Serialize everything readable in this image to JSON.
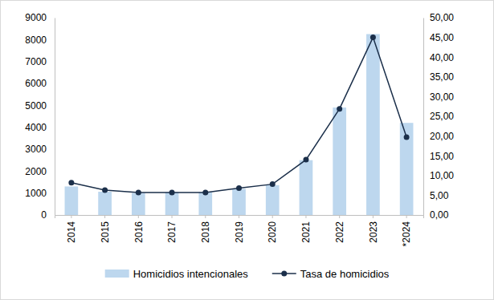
{
  "chart_data": {
    "type": "bar",
    "categories": [
      "2014",
      "2015",
      "2016",
      "2017",
      "2018",
      "2019",
      "2020",
      "2021",
      "2022",
      "2023",
      "*2024"
    ],
    "series": [
      {
        "name": "Homicidios intencionales",
        "type": "bar",
        "color": "#bdd7ee",
        "values": [
          1300,
          1060,
          1000,
          1040,
          1050,
          1190,
          1360,
          2500,
          4900,
          8250,
          4200
        ]
      },
      {
        "name": "Tasa de homicidios",
        "type": "line",
        "color": "#1b2f4a",
        "marker": "circle",
        "axis": "y2",
        "values": [
          8.2,
          6.3,
          5.7,
          5.7,
          5.7,
          6.8,
          7.8,
          14.0,
          26.9,
          45.0,
          19.7
        ]
      }
    ],
    "ylim": [
      0,
      9000
    ],
    "yticks": [
      0,
      1000,
      2000,
      3000,
      4000,
      5000,
      6000,
      7000,
      8000,
      9000
    ],
    "y2lim": [
      0,
      50
    ],
    "y2ticks": [
      {
        "value": 0,
        "label": "0,00"
      },
      {
        "value": 5,
        "label": "5,00"
      },
      {
        "value": 10,
        "label": "10,00"
      },
      {
        "value": 15,
        "label": "15,00"
      },
      {
        "value": 20,
        "label": "20,00"
      },
      {
        "value": 25,
        "label": "25,00"
      },
      {
        "value": 30,
        "label": "30,00"
      },
      {
        "value": 35,
        "label": "35,00"
      },
      {
        "value": 40,
        "label": "40,00"
      },
      {
        "value": 45,
        "label": "45,00"
      },
      {
        "value": 50,
        "label": "50,00"
      }
    ],
    "grid": false,
    "legend": "bottom"
  }
}
